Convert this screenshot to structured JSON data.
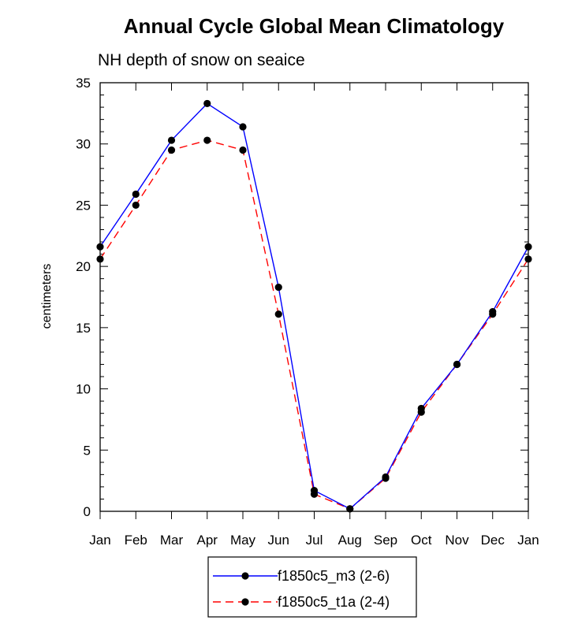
{
  "chart_data": {
    "type": "line",
    "title": "Annual Cycle Global Mean Climatology",
    "subtitle": "NH depth of snow on seaice",
    "xlabel": "",
    "ylabel": "centimeters",
    "categories": [
      "Jan",
      "Feb",
      "Mar",
      "Apr",
      "May",
      "Jun",
      "Jul",
      "Aug",
      "Sep",
      "Oct",
      "Nov",
      "Dec",
      "Jan"
    ],
    "yticks": [
      "0",
      "5",
      "10",
      "15",
      "20",
      "25",
      "30",
      "35"
    ],
    "ylim": [
      0,
      35
    ],
    "grid": false,
    "legend_position": "bottom",
    "series": [
      {
        "name": "f1850c5_m3 (2-6)",
        "color": "#0000ff",
        "dash": "solid",
        "marker": "filled-circle",
        "values": [
          21.6,
          25.9,
          30.3,
          33.3,
          31.4,
          18.3,
          1.7,
          0.2,
          2.8,
          8.4,
          12.0,
          16.3,
          21.6
        ]
      },
      {
        "name": "f1850c5_t1a (2-4)",
        "color": "#ff0000",
        "dash": "dashed",
        "marker": "filled-circle",
        "values": [
          20.6,
          25.0,
          29.5,
          30.3,
          29.5,
          16.1,
          1.4,
          0.2,
          2.7,
          8.1,
          12.0,
          16.1,
          20.6
        ]
      }
    ]
  }
}
